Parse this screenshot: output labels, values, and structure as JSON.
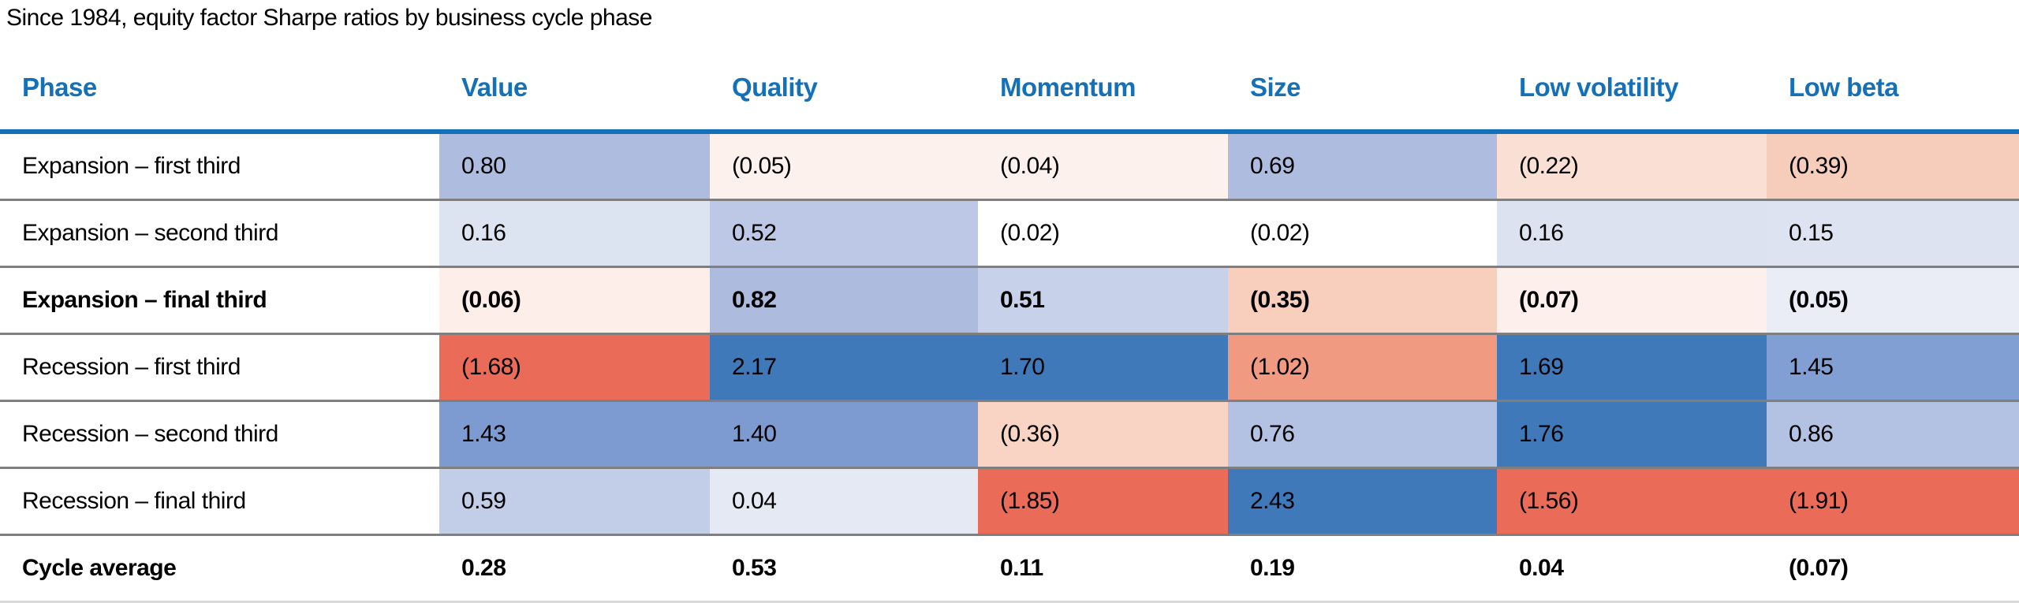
{
  "title": "Since 1984, equity factor Sharpe ratios by business cycle phase",
  "colors": {
    "header_text": "#1470b8",
    "header_rule": "#1470b8",
    "row_separator": "#7f7f7f",
    "footer_rule": "#d9d9d9",
    "strong_blue": "#3f79ba",
    "strong_red": "#ea6b58"
  },
  "table": {
    "columns": [
      "Phase",
      "Value",
      "Quality",
      "Momentum",
      "Size",
      "Low volatility",
      "Low beta"
    ],
    "rows": [
      {
        "phase": "Expansion – first third",
        "bold": false,
        "footer": false,
        "cells": [
          {
            "v": "0.80",
            "bg": "#aebcdf"
          },
          {
            "v": "(0.05)",
            "bg": "#fdf1ed"
          },
          {
            "v": "(0.04)",
            "bg": "#fdf1ed"
          },
          {
            "v": "0.69",
            "bg": "#aebcdf"
          },
          {
            "v": "(0.22)",
            "bg": "#fadfd4"
          },
          {
            "v": "(0.39)",
            "bg": "#f6cdbb"
          }
        ]
      },
      {
        "phase": "Expansion – second third",
        "bold": false,
        "footer": false,
        "cells": [
          {
            "v": "0.16",
            "bg": "#dce3f1"
          },
          {
            "v": "0.52",
            "bg": "#bcc8e5"
          },
          {
            "v": "(0.02)",
            "bg": "#ffffff"
          },
          {
            "v": "(0.02)",
            "bg": "#ffffff"
          },
          {
            "v": "0.16",
            "bg": "#dce2f0"
          },
          {
            "v": "0.15",
            "bg": "#dee3f1"
          }
        ]
      },
      {
        "phase": "Expansion – final third",
        "bold": true,
        "footer": false,
        "cells": [
          {
            "v": "(0.06)",
            "bg": "#fdeeea"
          },
          {
            "v": "0.82",
            "bg": "#acbbde"
          },
          {
            "v": "0.51",
            "bg": "#c8d1ea"
          },
          {
            "v": "(0.35)",
            "bg": "#f8cebd"
          },
          {
            "v": "(0.07)",
            "bg": "#fdf0ec"
          },
          {
            "v": "(0.05)",
            "bg": "#eaedf6"
          }
        ]
      },
      {
        "phase": "Recession – first third",
        "bold": false,
        "footer": false,
        "cells": [
          {
            "v": "(1.68)",
            "bg": "#ea6b58"
          },
          {
            "v": "2.17",
            "bg": "#3f79ba"
          },
          {
            "v": "1.70",
            "bg": "#3f79ba"
          },
          {
            "v": "(1.02)",
            "bg": "#f09a82"
          },
          {
            "v": "1.69",
            "bg": "#3f79ba"
          },
          {
            "v": "1.45",
            "bg": "#819fd2"
          }
        ]
      },
      {
        "phase": "Recession – second third",
        "bold": false,
        "footer": false,
        "cells": [
          {
            "v": "1.43",
            "bg": "#7e9bd1"
          },
          {
            "v": "1.40",
            "bg": "#7e9bd1"
          },
          {
            "v": "(0.36)",
            "bg": "#f9d4c5"
          },
          {
            "v": "0.76",
            "bg": "#b3c1e2"
          },
          {
            "v": "1.76",
            "bg": "#3f79ba"
          },
          {
            "v": "0.86",
            "bg": "#b3c1e2"
          }
        ]
      },
      {
        "phase": "Recession – final third",
        "bold": false,
        "footer": false,
        "cells": [
          {
            "v": "0.59",
            "bg": "#c2cde8"
          },
          {
            "v": "0.04",
            "bg": "#e4e9f4"
          },
          {
            "v": "(1.85)",
            "bg": "#ea6b58"
          },
          {
            "v": "2.43",
            "bg": "#3f79ba"
          },
          {
            "v": "(1.56)",
            "bg": "#ea6b58"
          },
          {
            "v": "(1.91)",
            "bg": "#ea6b58"
          }
        ]
      },
      {
        "phase": "Cycle average",
        "bold": true,
        "footer": true,
        "cells": [
          {
            "v": "0.28",
            "bg": "#ffffff"
          },
          {
            "v": "0.53",
            "bg": "#ffffff"
          },
          {
            "v": "0.11",
            "bg": "#ffffff"
          },
          {
            "v": "0.19",
            "bg": "#ffffff"
          },
          {
            "v": "0.04",
            "bg": "#ffffff"
          },
          {
            "v": "(0.07)",
            "bg": "#ffffff"
          }
        ]
      }
    ]
  },
  "chart_data": {
    "type": "heatmap",
    "title": "Since 1984, equity factor Sharpe ratios by business cycle phase",
    "columns": [
      "Value",
      "Quality",
      "Momentum",
      "Size",
      "Low volatility",
      "Low beta"
    ],
    "rows": [
      "Expansion – first third",
      "Expansion – second third",
      "Expansion – final third",
      "Recession – first third",
      "Recession – second third",
      "Recession – final third",
      "Cycle average"
    ],
    "values": [
      [
        0.8,
        -0.05,
        -0.04,
        0.69,
        -0.22,
        -0.39
      ],
      [
        0.16,
        0.52,
        -0.02,
        -0.02,
        0.16,
        0.15
      ],
      [
        -0.06,
        0.82,
        0.51,
        -0.35,
        -0.07,
        -0.05
      ],
      [
        -1.68,
        2.17,
        1.7,
        -1.02,
        1.69,
        1.45
      ],
      [
        1.43,
        1.4,
        -0.36,
        0.76,
        1.76,
        0.86
      ],
      [
        0.59,
        0.04,
        -1.85,
        2.43,
        -1.56,
        -1.91
      ],
      [
        0.28,
        0.53,
        0.11,
        0.19,
        0.04,
        -0.07
      ]
    ],
    "notes": "Negative values shown in parentheses; cells shaded blue for positive Sharpe ratios and red for negative, intensity scaled to magnitude; Cycle average row unshaded."
  }
}
